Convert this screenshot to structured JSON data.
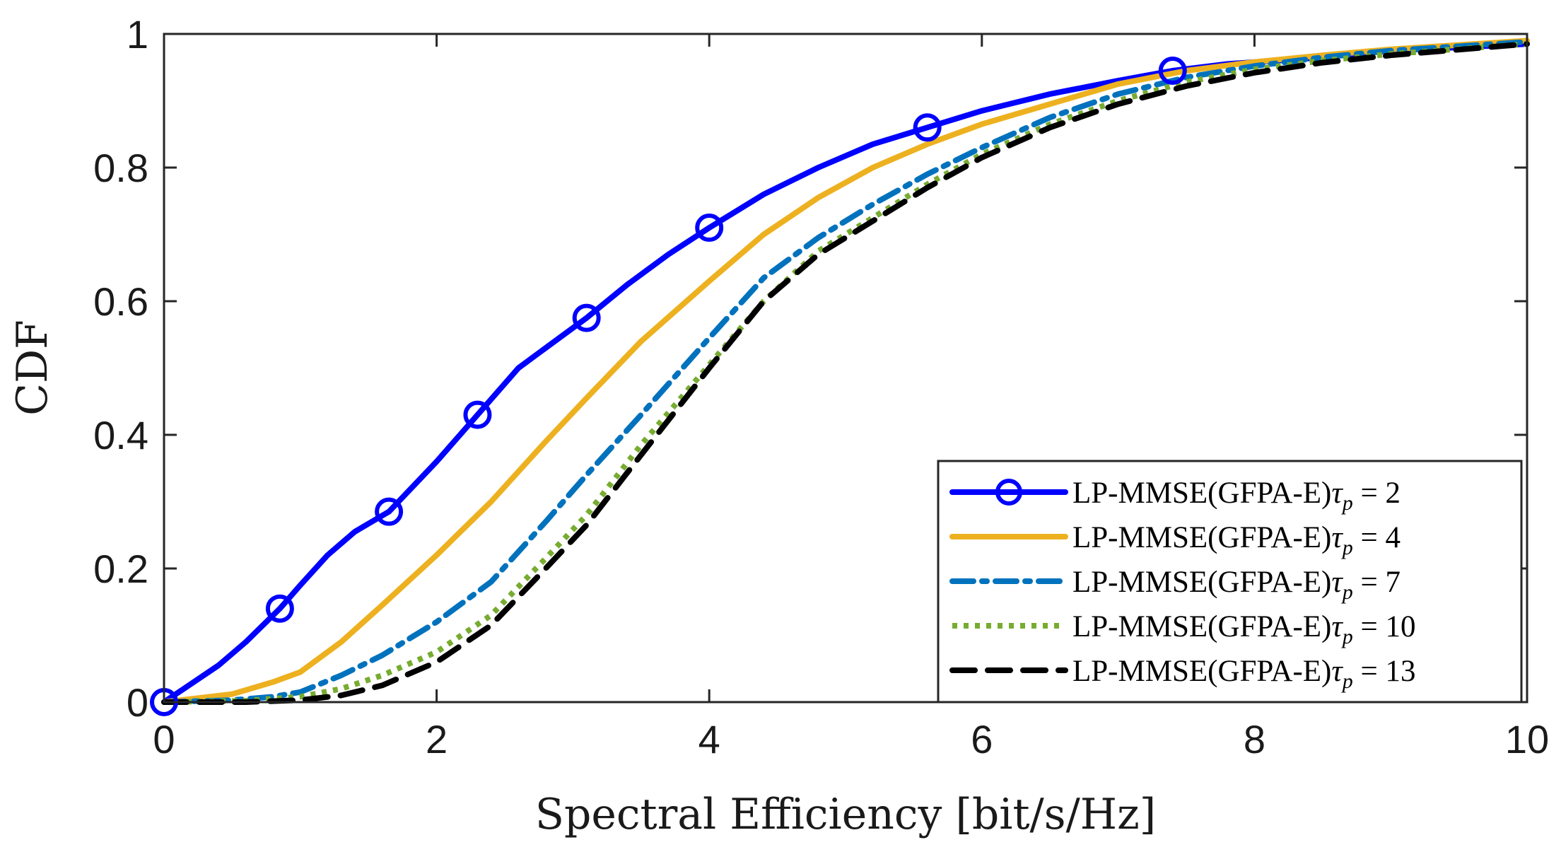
{
  "chart_data": {
    "type": "line",
    "title": "",
    "xlabel": "Spectral Efficiency [bit/s/Hz]",
    "ylabel": "CDF",
    "xlim": [
      0,
      10
    ],
    "ylim": [
      0,
      1
    ],
    "xticks": [
      "0",
      "2",
      "4",
      "6",
      "8",
      "10"
    ],
    "yticks": [
      "0",
      "0.2",
      "0.4",
      "0.6",
      "0.8",
      "1"
    ],
    "grid": false,
    "legend_position": "bottom-right",
    "series": [
      {
        "name": "LP-MMSE(GFPA-E)τp = 2",
        "legend_prefix": "LP-MMSE(GFPA-E)",
        "legend_suffix": " = 2",
        "color": "#0000ff",
        "style": "solid",
        "marker": "circle",
        "x": [
          0,
          0.4,
          0.6,
          0.85,
          1.0,
          1.2,
          1.4,
          1.65,
          2.0,
          2.3,
          2.6,
          2.8,
          3.1,
          3.4,
          3.7,
          4.0,
          4.4,
          4.8,
          5.2,
          5.6,
          6.0,
          6.5,
          7.0,
          7.4,
          7.8,
          8.5,
          9.0,
          10.0
        ],
        "y": [
          0,
          0.055,
          0.09,
          0.14,
          0.175,
          0.22,
          0.255,
          0.285,
          0.36,
          0.43,
          0.5,
          0.53,
          0.575,
          0.625,
          0.67,
          0.71,
          0.76,
          0.8,
          0.835,
          0.86,
          0.885,
          0.91,
          0.93,
          0.945,
          0.955,
          0.965,
          0.975,
          0.985
        ]
      },
      {
        "name": "LP-MMSE(GFPA-E)τp = 4",
        "legend_prefix": "LP-MMSE(GFPA-E)",
        "legend_suffix": " = 4",
        "color": "#edb120",
        "style": "solid",
        "marker": "none",
        "x": [
          0,
          0.5,
          0.8,
          1.0,
          1.3,
          1.6,
          2.0,
          2.4,
          2.8,
          3.1,
          3.5,
          4.0,
          4.4,
          4.8,
          5.2,
          5.6,
          6.0,
          6.5,
          7.0,
          7.5,
          8.0,
          8.5,
          9.0,
          10.0
        ],
        "y": [
          0,
          0.012,
          0.03,
          0.045,
          0.09,
          0.145,
          0.22,
          0.3,
          0.39,
          0.455,
          0.54,
          0.63,
          0.7,
          0.755,
          0.8,
          0.835,
          0.865,
          0.895,
          0.925,
          0.945,
          0.958,
          0.968,
          0.977,
          0.99
        ]
      },
      {
        "name": "LP-MMSE(GFPA-E)τp = 7",
        "legend_prefix": "LP-MMSE(GFPA-E)",
        "legend_suffix": " = 7",
        "color": "#0072bd",
        "style": "dashdot",
        "marker": "none",
        "x": [
          0,
          0.5,
          0.8,
          1.0,
          1.3,
          1.6,
          2.0,
          2.4,
          2.8,
          3.1,
          3.5,
          4.0,
          4.4,
          4.8,
          5.2,
          5.6,
          6.0,
          6.5,
          7.0,
          7.5,
          8.0,
          8.5,
          9.0,
          10.0
        ],
        "y": [
          0,
          0.003,
          0.008,
          0.015,
          0.04,
          0.07,
          0.12,
          0.18,
          0.27,
          0.34,
          0.43,
          0.545,
          0.635,
          0.695,
          0.745,
          0.79,
          0.83,
          0.875,
          0.91,
          0.935,
          0.952,
          0.965,
          0.975,
          0.988
        ]
      },
      {
        "name": "LP-MMSE(GFPA-E)τp = 10",
        "legend_prefix": "LP-MMSE(GFPA-E)",
        "legend_suffix": " = 10",
        "color": "#77ac30",
        "style": "dotted",
        "marker": "none",
        "x": [
          0,
          0.6,
          1.0,
          1.3,
          1.6,
          2.0,
          2.4,
          2.8,
          3.1,
          3.5,
          4.0,
          4.4,
          4.8,
          5.2,
          5.6,
          6.0,
          6.5,
          7.0,
          7.5,
          8.0,
          8.5,
          9.0,
          10.0
        ],
        "y": [
          0,
          0.002,
          0.008,
          0.02,
          0.04,
          0.075,
          0.13,
          0.215,
          0.28,
          0.385,
          0.505,
          0.6,
          0.675,
          0.725,
          0.775,
          0.82,
          0.865,
          0.9,
          0.928,
          0.947,
          0.96,
          0.97,
          0.985
        ]
      },
      {
        "name": "LP-MMSE(GFPA-E)τp = 13",
        "legend_prefix": "LP-MMSE(GFPA-E)",
        "legend_suffix": " = 13",
        "color": "#000000",
        "style": "dashed",
        "marker": "none",
        "x": [
          0,
          0.6,
          1.0,
          1.3,
          1.6,
          2.0,
          2.4,
          2.8,
          3.1,
          3.5,
          4.0,
          4.4,
          4.8,
          5.2,
          5.6,
          6.0,
          6.5,
          7.0,
          7.5,
          8.0,
          8.5,
          9.0,
          10.0
        ],
        "y": [
          0,
          0.0,
          0.003,
          0.01,
          0.025,
          0.06,
          0.115,
          0.2,
          0.265,
          0.37,
          0.5,
          0.6,
          0.67,
          0.72,
          0.77,
          0.815,
          0.86,
          0.895,
          0.922,
          0.942,
          0.957,
          0.968,
          0.985
        ]
      }
    ]
  }
}
